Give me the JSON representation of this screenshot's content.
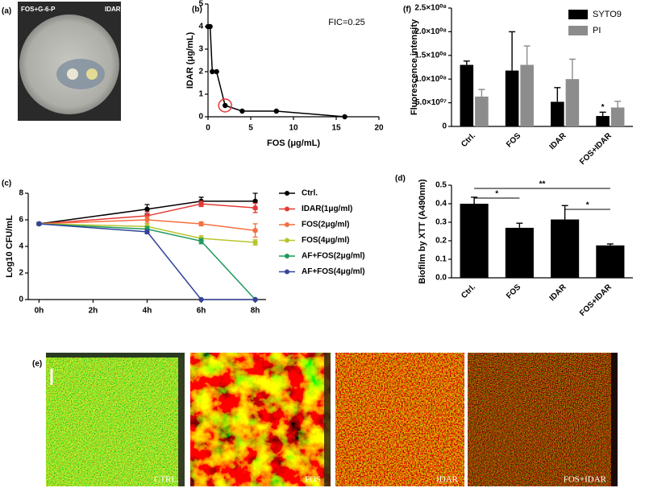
{
  "panel_a": {
    "label": "(a)",
    "texts": [
      "FOS+G-6-P",
      "IDAR"
    ]
  },
  "panel_e": {
    "label": "(e)",
    "captions": [
      "CTRL.",
      "FOS",
      "IDAR",
      "FOS+IDAR"
    ]
  },
  "chart_data": [
    {
      "type": "line",
      "panel": "(b)",
      "xlabel": "FOS (μg/mL)",
      "ylabel": "IDAR (μg/mL)",
      "annotation": "FIC=0.25",
      "x": [
        0,
        0.25,
        0.5,
        1,
        2,
        4,
        8,
        16
      ],
      "series": [
        {
          "color": "#000000",
          "values": [
            4,
            4,
            2,
            2,
            0.5,
            0.25,
            0.25,
            0
          ]
        }
      ],
      "xlim": [
        0,
        20
      ],
      "xticks": [
        0,
        5,
        10,
        15,
        20
      ],
      "ylim": [
        0,
        5
      ],
      "yticks": [
        0,
        1,
        2,
        3,
        4,
        5
      ]
    },
    {
      "type": "line",
      "panel": "(c)",
      "ylabel": "Log10 CFU/mL",
      "legend": "right",
      "x": [
        0,
        4,
        6,
        8
      ],
      "series": [
        {
          "name": "Ctrl.",
          "color": "#000000",
          "values": [
            5.7,
            6.8,
            7.4,
            7.4
          ],
          "errors": [
            0.1,
            0.35,
            0.3,
            0.6
          ]
        },
        {
          "name": "IDAR(1μg/ml)",
          "color": "#e53935",
          "values": [
            5.7,
            6.3,
            7.2,
            6.9
          ],
          "errors": [
            0.1,
            0.3,
            0.2,
            0.35
          ]
        },
        {
          "name": "FOS(2μg/ml)",
          "color": "#f4703f",
          "values": [
            5.7,
            6.0,
            5.7,
            5.2
          ],
          "errors": [
            0.1,
            0.25,
            0.15,
            0.5
          ]
        },
        {
          "name": "FOS(4μg/ml)",
          "color": "#b8c52e",
          "values": [
            5.7,
            5.5,
            4.6,
            4.3
          ],
          "errors": [
            0.1,
            0.2,
            0.2,
            0.2
          ]
        },
        {
          "name": "AF+FOS(2μg/ml)",
          "color": "#1e9a5c",
          "values": [
            5.7,
            5.3,
            4.4,
            0
          ],
          "errors": [
            0.1,
            0.2,
            0.2,
            0
          ]
        },
        {
          "name": "AF+FOS(4μg/ml)",
          "color": "#34449a",
          "values": [
            5.7,
            5.1,
            0,
            0
          ],
          "errors": [
            0.1,
            0.15,
            0,
            0
          ]
        }
      ],
      "xlim": [
        -0.4,
        8.4
      ],
      "xticks": [
        {
          "value": 0,
          "label": "0h"
        },
        {
          "value": 2,
          "label": "2h"
        },
        {
          "value": 4,
          "label": "4h"
        },
        {
          "value": 6,
          "label": "6h"
        },
        {
          "value": 8,
          "label": "8h"
        }
      ],
      "ylim": [
        0,
        8
      ],
      "yticks": [
        0,
        2,
        4,
        6,
        8
      ]
    },
    {
      "type": "bar",
      "panel": "(d)",
      "ylabel": "Biofilm by XTT (A490nm)",
      "categories": [
        "Ctrl.",
        "FOS",
        "IDAR",
        "FOS+IDAR"
      ],
      "series": [
        {
          "color": "#000000",
          "values": [
            0.4,
            0.27,
            0.315,
            0.175
          ],
          "errors": [
            0.035,
            0.025,
            0.075,
            0.008
          ]
        }
      ],
      "annotations": [
        "*",
        "**",
        "*"
      ],
      "ylim": [
        0,
        0.5
      ],
      "yticks": [
        {
          "value": 0,
          "label": "0.0"
        },
        0.1,
        0.2,
        0.3,
        0.4,
        0.5
      ]
    },
    {
      "type": "bar",
      "panel": "(f)",
      "ylabel": "Fluorescence intensity",
      "legend": "upper right",
      "categories": [
        "Ctrl.",
        "FOS",
        "IDAR",
        "FOS+IDAR"
      ],
      "series": [
        {
          "name": "SYTO9",
          "color": "#000000",
          "values": [
            130000000,
            118000000,
            52000000,
            22000000
          ],
          "errors": [
            8000000,
            82000000,
            30000000,
            8000000
          ]
        },
        {
          "name": "PI",
          "color": "#8c8c8c",
          "values": [
            63000000,
            130000000,
            100000000,
            40000000
          ],
          "errors": [
            15000000,
            40000000,
            42000000,
            13000000
          ]
        }
      ],
      "annotations": [
        "*"
      ],
      "ylim": [
        0,
        250000000
      ],
      "yticks": [
        0,
        {
          "value": 50000000,
          "label": "5.0×10⁰⁷"
        },
        {
          "value": 100000000,
          "label": "1.0×10⁰⁸"
        },
        {
          "value": 150000000,
          "label": "1.5×10⁰⁸"
        },
        {
          "value": 200000000,
          "label": "2.0×10⁰⁸"
        },
        {
          "value": 250000000,
          "label": "2.5×10⁰⁸"
        }
      ]
    }
  ]
}
